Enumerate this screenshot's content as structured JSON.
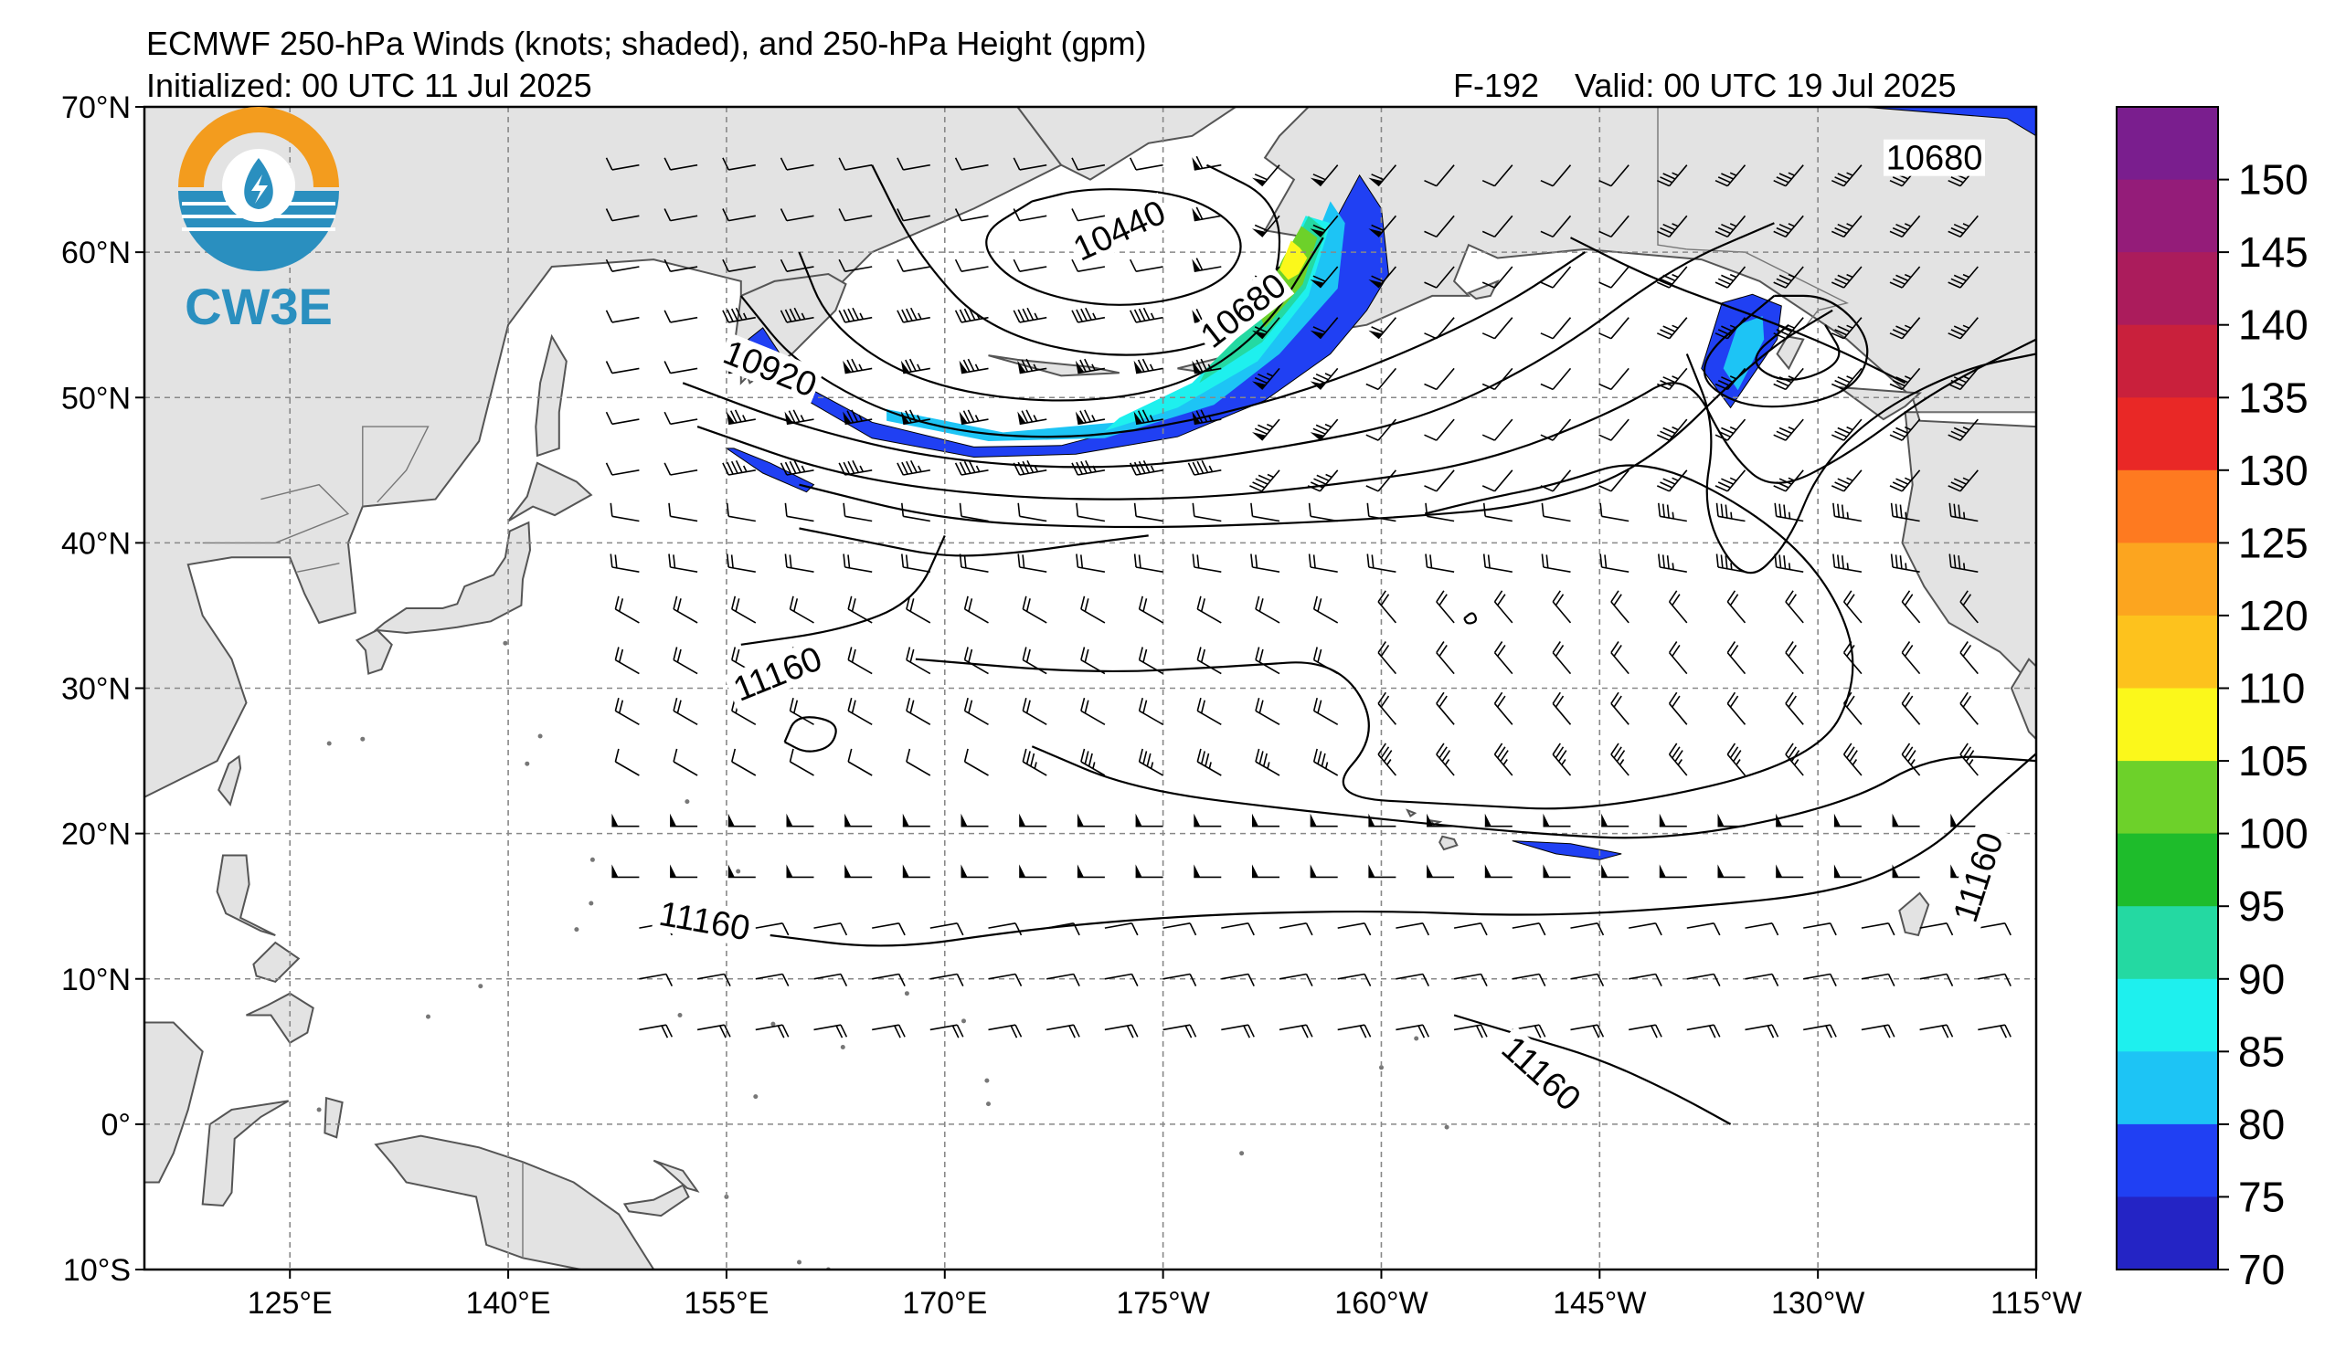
{
  "header": {
    "title": "ECMWF 250-hPa Winds (knots; shaded), and 250-hPa Height (gpm)",
    "init": "Initialized: 00 UTC 11 Jul 2025",
    "forecast": "F-192",
    "valid": "Valid: 00 UTC 19 Jul 2025"
  },
  "logo": {
    "text": "CW3E",
    "colors": {
      "ring": "#f39c1e",
      "blue": "#2a8fbf"
    }
  },
  "map": {
    "lat_labels": [
      "70°N",
      "60°N",
      "50°N",
      "40°N",
      "30°N",
      "20°N",
      "10°N",
      "0°",
      "10°S"
    ],
    "lon_labels": [
      "125°E",
      "140°E",
      "155°E",
      "170°E",
      "175°W",
      "160°W",
      "145°W",
      "130°W",
      "115°W"
    ],
    "extent": {
      "lon_min": 115,
      "lon_max": 245,
      "lat_min": -10,
      "lat_max": 70
    },
    "land_color": "#e3e3e3",
    "contour_labels": [
      {
        "text": "10440",
        "lon": 182,
        "lat": 61.5,
        "rot": -25
      },
      {
        "text": "10680",
        "lon": 190.5,
        "lat": 56,
        "rot": -38
      },
      {
        "text": "10920",
        "lon": 158,
        "lat": 52,
        "rot": 22
      },
      {
        "text": "10680",
        "lon": 238,
        "lat": 66.5,
        "rot": 0
      },
      {
        "text": "11160",
        "lon": 158.5,
        "lat": 31,
        "rot": -22
      },
      {
        "text": "11160",
        "lon": 153.5,
        "lat": 14,
        "rot": 10
      },
      {
        "text": "11160",
        "lon": 211,
        "lat": 3.5,
        "rot": 42
      },
      {
        "text": "11160",
        "lon": 241,
        "lat": 17,
        "rot": -72
      }
    ]
  },
  "colorbar": {
    "labels": [
      "150",
      "145",
      "140",
      "135",
      "130",
      "125",
      "120",
      "110",
      "105",
      "100",
      "95",
      "90",
      "85",
      "80",
      "75",
      "70"
    ],
    "colors": [
      "#7a1e8e",
      "#941c79",
      "#ab1c5c",
      "#c9203c",
      "#e92826",
      "#fe7a20",
      "#fca51f",
      "#fdc21d",
      "#fbf81b",
      "#6dd12a",
      "#1ebc2b",
      "#24d9a2",
      "#1ef0ee",
      "#1dc4f5",
      "#2040f3",
      "#2424c5"
    ],
    "unit_note": ""
  },
  "chart_data": {
    "type": "map",
    "title": "ECMWF 250-hPa Winds (knots; shaded), and 250-hPa Height (gpm)",
    "projection": "PlateCarree",
    "lon_range": [
      115,
      245
    ],
    "lat_range": [
      -10,
      70
    ],
    "gridlines": true,
    "colorbar_levels": [
      70,
      75,
      80,
      85,
      90,
      95,
      100,
      105,
      110,
      120,
      125,
      130,
      135,
      140,
      145,
      150
    ],
    "height_contour_labels_gpm": [
      10440,
      10680,
      10920,
      10680,
      11160,
      11160,
      11160,
      11160
    ]
  }
}
